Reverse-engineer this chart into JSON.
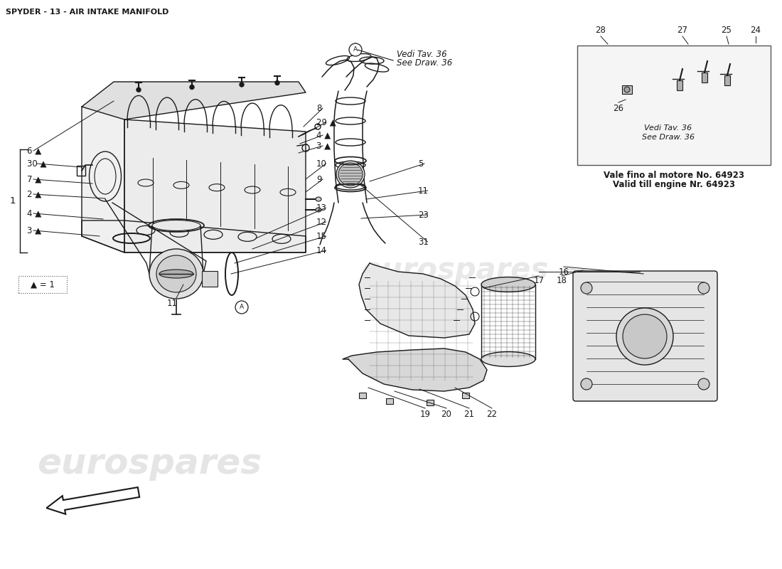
{
  "title": "SPYDER - 13 - AIR INTAKE MANIFOLD",
  "background_color": "#ffffff",
  "line_color": "#1a1a1a",
  "watermark_color": "#cccccc",
  "watermark_text": "eurospares",
  "note_vedi1": "Vedi Tav. 36",
  "note_see1": "See Draw. 36",
  "note_vedi2": "Vedi Tav. 36",
  "note_see2": "See Draw. 36",
  "note_valid_it": "Vale fino al motore No. 64923",
  "note_valid_en": "Valid till engine Nr. 64923"
}
